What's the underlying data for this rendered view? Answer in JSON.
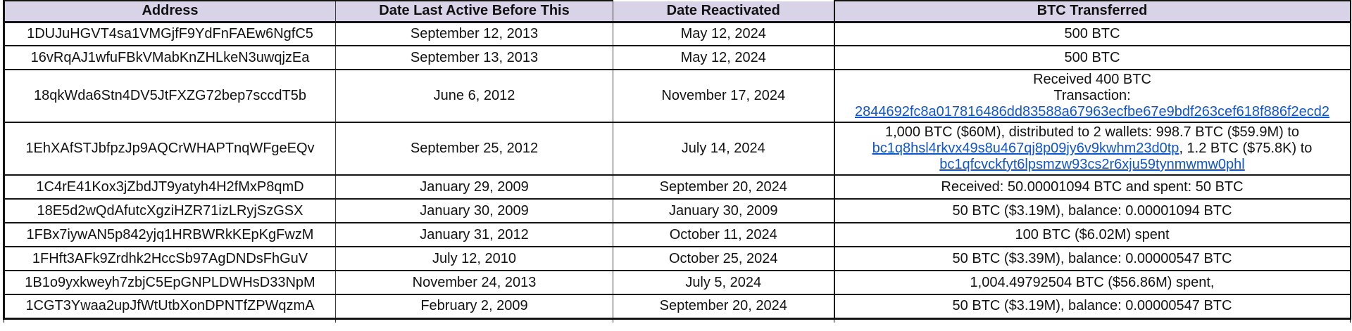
{
  "header": {
    "columns": [
      "Address",
      "Date Last Active Before This",
      "Date Reactivated",
      "BTC Transferred"
    ]
  },
  "colors": {
    "header_bg": "#d8d3e7",
    "link_blue": "#1155cc",
    "border_black": "#141414",
    "cell_bg": "#ffffff"
  },
  "rows": [
    {
      "size": "normal",
      "address": "1DUJuHGVT4sa1VMGjfF9YdFnFAEw6NgfC5",
      "date_last_active": "September 12, 2013",
      "date_reactivated": "May 12, 2024",
      "btc_transferred": [
        {
          "t": "500 BTC"
        }
      ]
    },
    {
      "size": "normal",
      "address": "16vRqAJ1wfuFBkVMabKnZHLkeN3uwqjzEa",
      "date_last_active": "September 13, 2013",
      "date_reactivated": "May 12, 2024",
      "btc_transferred": [
        {
          "t": "500 BTC"
        }
      ]
    },
    {
      "size": "tall",
      "address": "18qkWda6Stn4DV5JtFXZG72bep7sccdT5b",
      "date_last_active": "June 6, 2012",
      "date_reactivated": "November 17, 2024",
      "btc_transferred": [
        {
          "t": "Received 400 BTC"
        },
        {
          "br": true
        },
        {
          "t": "Transaction:"
        },
        {
          "br": true
        },
        {
          "t": "2844692fc8a017816486dd83588a67963ecfbe67e9bdf263cef618f886f2ecd2",
          "link": true,
          "name": "transaction-hash-link"
        }
      ]
    },
    {
      "size": "tall",
      "address": "1EhXAfSTJbfpzJp9AQCrWHAPTnqWFgeEQv",
      "date_last_active": "September 25, 2012",
      "date_reactivated": "July 14, 2024",
      "btc_transferred": [
        {
          "t": "1,000 BTC ($60M), distributed to 2 wallets: 998.7 BTC ($59.9M) to"
        },
        {
          "br": true
        },
        {
          "t": "bc1q8hsl4rkvx49s8u467qj8p09jy6v9kwhm23d0tp",
          "link": true,
          "name": "wallet-address-link-1"
        },
        {
          "t": ", 1.2 BTC ($75.8K) to"
        },
        {
          "br": true
        },
        {
          "t": "bc1qfcvckfyt6lpsmzw93cs2r6xju59tynmwmw0phl",
          "link": true,
          "name": "wallet-address-link-2"
        }
      ]
    },
    {
      "size": "normal",
      "address": "1C4rE41Kox3jZbdJT9yatyh4H2fMxP8qmD",
      "date_last_active": "January 29, 2009",
      "date_reactivated": "September 20, 2024",
      "btc_transferred": [
        {
          "t": "Received: 50.00001094 BTC and spent: 50 BTC"
        }
      ]
    },
    {
      "size": "normal",
      "address": "18E5d2wQdAfutcXgziHZR71izLRyjSzGSX",
      "date_last_active": "January 30, 2009",
      "date_reactivated": "January 30, 2009",
      "btc_transferred": [
        {
          "t": "50 BTC ($3.19M), balance: 0.00001094 BTC"
        }
      ]
    },
    {
      "size": "normal",
      "address": "1FBx7iywAN5p842yjq1HRBWRkKEpKgFwzM",
      "date_last_active": "January 31, 2012",
      "date_reactivated": "October 11, 2024",
      "btc_transferred": [
        {
          "t": "100 BTC ($6.02M) spent"
        }
      ]
    },
    {
      "size": "normal",
      "address": "1FHft3AFk9Zrdhk2HccSb97AgDNDsFhGuV",
      "date_last_active": "July 12, 2010",
      "date_reactivated": "October 25, 2024",
      "btc_transferred": [
        {
          "t": "50 BTC ($3.39M), balance: 0.00000547 BTC"
        }
      ]
    },
    {
      "size": "normal",
      "address": "1B1o9yxkweyh7zbjC5EpGNPLDWHsD33NpM",
      "date_last_active": "November 24, 2013",
      "date_reactivated": "July 5, 2024",
      "btc_transferred": [
        {
          "t": "1,004.49792504 BTC ($56.86M) spent,"
        }
      ]
    },
    {
      "size": "normal",
      "address": "1CGT3Ywaa2upJfWtUtbXonDPNTfZPWqzmA",
      "date_last_active": "February 2, 2009",
      "date_reactivated": "September 20, 2024",
      "btc_transferred": [
        {
          "t": "50 BTC ($3.19M), balance: 0.00000547 BTC"
        }
      ]
    }
  ]
}
